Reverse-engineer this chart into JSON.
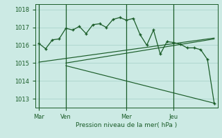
{
  "background_color": "#cceae4",
  "grid_color": "#aad4cc",
  "line_color": "#1a5c28",
  "xlabel": "Pression niveau de la mer( hPa )",
  "ylim": [
    1012.5,
    1018.3
  ],
  "yticks": [
    1013,
    1014,
    1015,
    1016,
    1017,
    1018
  ],
  "day_labels": [
    "Mar",
    "Ven",
    "Mer",
    "Jeu"
  ],
  "day_positions": [
    0,
    4,
    13,
    20
  ],
  "vline_positions": [
    0,
    4,
    13,
    20
  ],
  "main_x": [
    0,
    1,
    2,
    3,
    4,
    5,
    6,
    7,
    8,
    9,
    10,
    11,
    12,
    13,
    14,
    15,
    16,
    17,
    18,
    19,
    20,
    21,
    22,
    23,
    24,
    25,
    26
  ],
  "main_y": [
    1016.1,
    1015.8,
    1016.3,
    1016.35,
    1016.95,
    1016.85,
    1017.05,
    1016.65,
    1017.15,
    1017.2,
    1017.0,
    1017.45,
    1017.55,
    1017.4,
    1017.5,
    1016.6,
    1016.0,
    1016.85,
    1015.5,
    1016.2,
    1016.15,
    1016.05,
    1015.85,
    1015.85,
    1015.75,
    1015.2,
    1012.75
  ],
  "line1_x": [
    0,
    26
  ],
  "line1_y": [
    1015.05,
    1016.4
  ],
  "line2_x": [
    4,
    26
  ],
  "line2_y": [
    1015.0,
    1016.35
  ],
  "line3_x": [
    4,
    26
  ],
  "line3_y": [
    1014.85,
    1012.75
  ],
  "xlim": [
    -0.5,
    26.5
  ]
}
